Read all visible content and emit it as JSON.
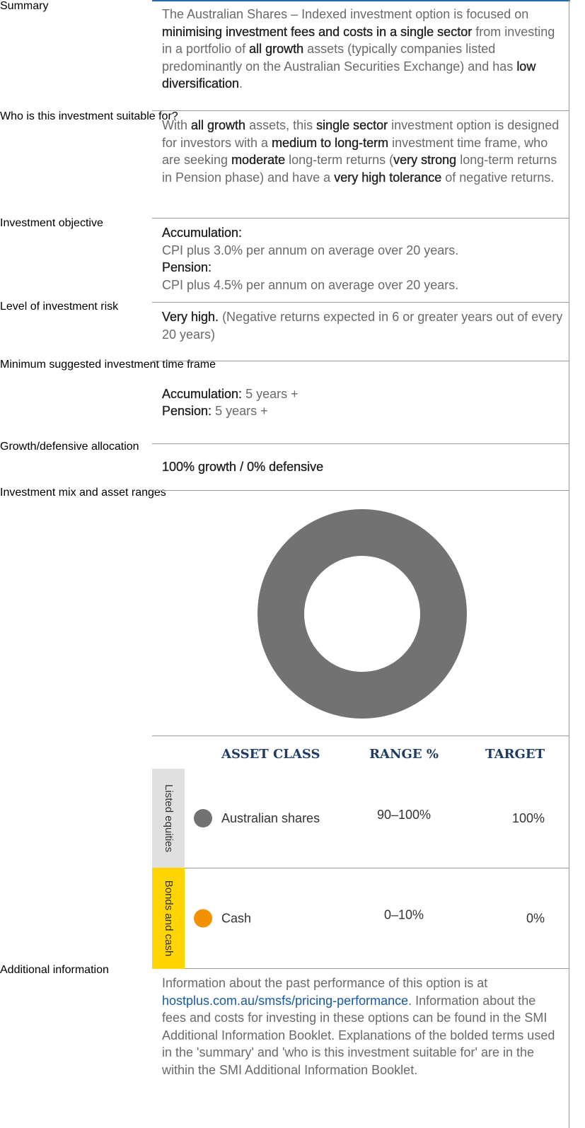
{
  "rows": [
    {
      "label": "Summary",
      "paragraphs": [
        [
          {
            "text": "The Australian Shares – Indexed investment option is focused on ",
            "bold": false
          },
          {
            "text": "minimising investment fees and costs in a single sector",
            "bold": true
          },
          {
            "text": " from investing in a portfolio of ",
            "bold": false
          },
          {
            "text": "all growth",
            "bold": true
          },
          {
            "text": " assets (typically companies listed predominantly on the Australian Securities Exchange) and has ",
            "bold": false
          },
          {
            "text": "low diversification",
            "bold": true
          },
          {
            "text": ".",
            "bold": false
          }
        ]
      ]
    },
    {
      "label": "Who is this investment suitable for?",
      "paragraphs": [
        [
          {
            "text": "With ",
            "bold": false
          },
          {
            "text": "all growth",
            "bold": true
          },
          {
            "text": " assets, this ",
            "bold": false
          },
          {
            "text": "single sector",
            "bold": true
          },
          {
            "text": " investment option is designed for investors with a ",
            "bold": false
          },
          {
            "text": "medium to long-term",
            "bold": true
          },
          {
            "text": " investment time frame, who are seeking ",
            "bold": false
          },
          {
            "text": "moderate",
            "bold": true
          },
          {
            "text": " long-term returns (",
            "bold": false
          },
          {
            "text": "very strong",
            "bold": true
          },
          {
            "text": " long-term returns in Pension phase) and have a ",
            "bold": false
          },
          {
            "text": "very high tolerance",
            "bold": true
          },
          {
            "text": " of negative returns.",
            "bold": false
          }
        ]
      ]
    },
    {
      "label": "Investment objective",
      "paragraphs": [
        [
          {
            "text": "Accumulation:",
            "bold": true
          }
        ],
        [
          {
            "text": "CPI plus 3.0% per annum on average over 20 years.",
            "bold": false
          }
        ],
        [
          {
            "text": "Pension:",
            "bold": true
          }
        ],
        [
          {
            "text": "CPI plus 4.5% per annum on average over 20 years.",
            "bold": false
          }
        ]
      ]
    },
    {
      "label": "Level of investment risk",
      "paragraphs": [
        [
          {
            "text": "Very high.",
            "bold": true
          },
          {
            "text": " (Negative returns expected in 6 or greater years out of every 20 years)",
            "bold": false
          }
        ]
      ]
    },
    {
      "label": "Minimum suggested investment time frame",
      "paragraphs": [
        [
          {
            "text": "Accumulation:",
            "bold": true
          },
          {
            "text": " 5 years +",
            "bold": false
          }
        ],
        [
          {
            "text": "Pension:",
            "bold": true
          },
          {
            "text": " 5 years +",
            "bold": false
          }
        ]
      ]
    },
    {
      "label": "Growth/defensive allocation",
      "paragraphs": [
        [
          {
            "text": "100% growth / 0% defensive",
            "bold": true
          }
        ]
      ]
    },
    {
      "label": "Investment mix and asset ranges",
      "asset_table": {
        "headers": [
          "ASSET CLASS",
          "RANGE %",
          "TARGET"
        ],
        "groups": [
          {
            "name": "Listed equities",
            "color": "#e0e0e0",
            "assets": [
              {
                "name": "Australian shares",
                "color": "#717271",
                "range": "90–100%",
                "target": {
                  "value": 100,
                  "label": "100%"
                }
              }
            ]
          },
          {
            "name": "Bonds and cash",
            "color": "#ffd500",
            "assets": [
              {
                "name": "Cash",
                "color": "#f39200",
                "range": "0–10%",
                "target": {
                  "value": 0,
                  "label": "0%"
                }
              }
            ]
          }
        ]
      }
    },
    {
      "label": "Additional information",
      "paragraphs": [
        [
          {
            "text": "Information about the past performance of this option is at ",
            "bold": false
          },
          {
            "text": "hostplus.com.au/smsfs/pricing-performance",
            "bold": false,
            "link": true
          },
          {
            "text": ". Information about the fees and costs for investing in these options can be found in the SMI Additional Information Booklet. Explanations of the bolded terms used in the 'summary' and 'who is this investment suitable for' are in the within the SMI Additional Information Booklet.",
            "bold": false
          }
        ]
      ]
    }
  ]
}
